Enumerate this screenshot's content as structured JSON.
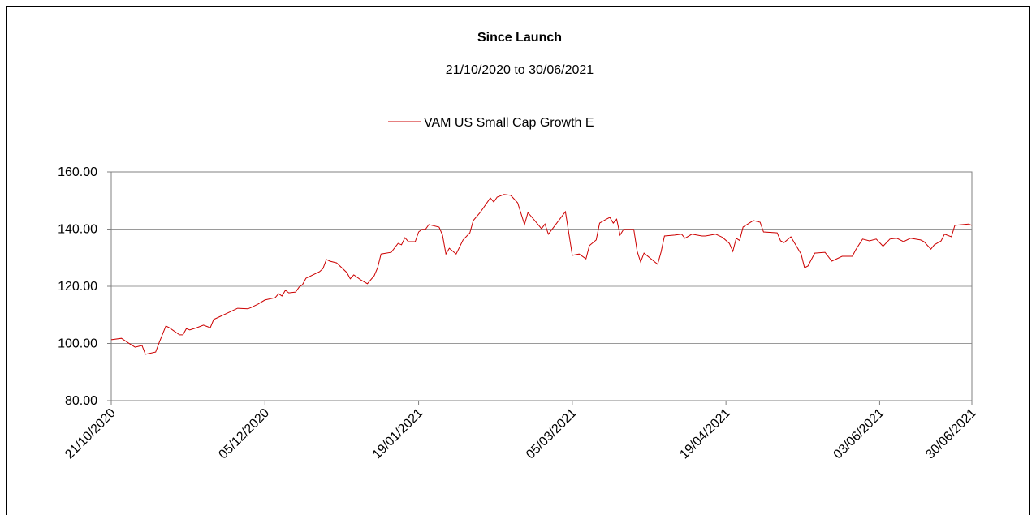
{
  "chart_data": {
    "type": "line",
    "title": "Since Launch",
    "subtitle": "21/10/2020 to 30/06/2021",
    "x": [
      "21/10/2020",
      "24/10/2020",
      "26/10/2020",
      "28/10/2020",
      "30/10/2020",
      "31/10/2020",
      "03/11/2020",
      "04/11/2020",
      "06/11/2020",
      "07/11/2020",
      "10/11/2020",
      "11/11/2020",
      "12/11/2020",
      "13/11/2020",
      "15/11/2020",
      "17/11/2020",
      "19/11/2020",
      "20/11/2020",
      "22/11/2020",
      "24/11/2020",
      "27/11/2020",
      "30/11/2020",
      "01/12/2020",
      "03/12/2020",
      "05/12/2020",
      "08/12/2020",
      "09/12/2020",
      "10/12/2020",
      "11/12/2020",
      "12/12/2020",
      "14/12/2020",
      "15/12/2020",
      "16/12/2020",
      "17/12/2020",
      "21/12/2020",
      "22/12/2020",
      "23/12/2020",
      "24/12/2020",
      "26/12/2020",
      "29/12/2020",
      "30/12/2020",
      "31/12/2020",
      "02/01/2021",
      "04/01/2021",
      "06/01/2021",
      "07/01/2021",
      "08/01/2021",
      "11/01/2021",
      "13/01/2021",
      "14/01/2021",
      "15/01/2021",
      "16/01/2021",
      "18/01/2021",
      "19/01/2021",
      "20/01/2021",
      "21/01/2021",
      "22/01/2021",
      "25/01/2021",
      "26/01/2021",
      "27/01/2021",
      "28/01/2021",
      "30/01/2021",
      "01/02/2021",
      "03/02/2021",
      "04/02/2021",
      "06/02/2021",
      "09/02/2021",
      "10/02/2021",
      "11/02/2021",
      "13/02/2021",
      "15/02/2021",
      "17/02/2021",
      "19/02/2021",
      "20/02/2021",
      "22/02/2021",
      "24/02/2021",
      "25/02/2021",
      "26/02/2021",
      "03/03/2021",
      "05/03/2021",
      "07/03/2021",
      "09/03/2021",
      "10/03/2021",
      "12/03/2021",
      "13/03/2021",
      "15/03/2021",
      "16/03/2021",
      "17/03/2021",
      "18/03/2021",
      "19/03/2021",
      "20/03/2021",
      "23/03/2021",
      "24/03/2021",
      "25/03/2021",
      "26/03/2021",
      "30/03/2021",
      "31/03/2021",
      "01/04/2021",
      "04/04/2021",
      "06/04/2021",
      "07/04/2021",
      "09/04/2021",
      "12/04/2021",
      "13/04/2021",
      "16/04/2021",
      "18/04/2021",
      "20/04/2021",
      "21/04/2021",
      "22/04/2021",
      "23/04/2021",
      "24/04/2021",
      "27/04/2021",
      "29/04/2021",
      "30/04/2021",
      "04/05/2021",
      "05/05/2021",
      "06/05/2021",
      "08/05/2021",
      "11/05/2021",
      "12/05/2021",
      "13/05/2021",
      "15/05/2021",
      "18/05/2021",
      "20/05/2021",
      "23/05/2021",
      "26/05/2021",
      "27/05/2021",
      "29/05/2021",
      "31/05/2021",
      "02/06/2021",
      "04/06/2021",
      "06/06/2021",
      "08/06/2021",
      "10/06/2021",
      "12/06/2021",
      "15/06/2021",
      "16/06/2021",
      "18/06/2021",
      "19/06/2021",
      "21/06/2021",
      "22/06/2021",
      "24/06/2021",
      "25/06/2021",
      "29/06/2021",
      "30/06/2021"
    ],
    "series": [
      {
        "name": "VAM US Small Cap Growth E",
        "color": "#cc0000",
        "values": [
          101.3,
          101.8,
          100.2,
          98.7,
          99.3,
          96.2,
          97.0,
          100.2,
          106.1,
          105.5,
          103.0,
          103.0,
          105.2,
          104.7,
          105.5,
          106.4,
          105.5,
          108.4,
          109.5,
          110.6,
          112.3,
          112.1,
          112.6,
          113.8,
          115.2,
          116.0,
          117.4,
          116.6,
          118.6,
          117.7,
          118.0,
          119.7,
          120.6,
          122.8,
          125.1,
          126.2,
          129.4,
          128.8,
          128.2,
          124.8,
          122.6,
          124.0,
          122.3,
          120.9,
          123.7,
          126.5,
          131.3,
          131.9,
          135.0,
          134.5,
          137.0,
          135.6,
          135.6,
          139.0,
          139.9,
          139.9,
          141.6,
          140.7,
          137.9,
          131.3,
          133.3,
          131.3,
          136.2,
          138.7,
          143.0,
          145.8,
          150.9,
          149.5,
          151.2,
          152.1,
          151.8,
          149.2,
          141.6,
          145.8,
          143.0,
          140.1,
          141.8,
          138.2,
          146.1,
          130.8,
          131.3,
          129.6,
          134.2,
          136.2,
          142.1,
          143.5,
          144.1,
          142.1,
          143.5,
          137.9,
          139.9,
          139.9,
          132.2,
          128.5,
          131.6,
          127.7,
          132.0,
          137.6,
          137.9,
          138.2,
          136.8,
          138.2,
          137.6,
          137.6,
          138.2,
          137.1,
          135.0,
          132.2,
          136.8,
          136.0,
          140.7,
          143.0,
          142.4,
          139.0,
          138.7,
          135.9,
          135.3,
          137.3,
          131.3,
          126.5,
          127.1,
          131.6,
          131.9,
          128.8,
          130.5,
          130.5,
          132.8,
          136.5,
          135.9,
          136.5,
          134.0,
          136.5,
          136.8,
          135.6,
          136.8,
          136.2,
          135.6,
          133.0,
          134.5,
          135.9,
          138.2,
          137.3,
          141.3,
          141.8,
          141.3
        ]
      }
    ],
    "xlim": [
      "21/10/2020",
      "30/06/2021"
    ],
    "xticks": [
      "21/10/2020",
      "05/12/2020",
      "19/01/2021",
      "05/03/2021",
      "19/04/2021",
      "03/06/2021",
      "30/06/2021"
    ],
    "ylim": [
      80,
      160
    ],
    "yticks": [
      {
        "value": 80,
        "label": "80.00"
      },
      {
        "value": 100,
        "label": "100.00"
      },
      {
        "value": 120,
        "label": "120.00"
      },
      {
        "value": 140,
        "label": "140.00"
      },
      {
        "value": 160,
        "label": "160.00"
      }
    ],
    "grid": true,
    "legend": "top"
  }
}
